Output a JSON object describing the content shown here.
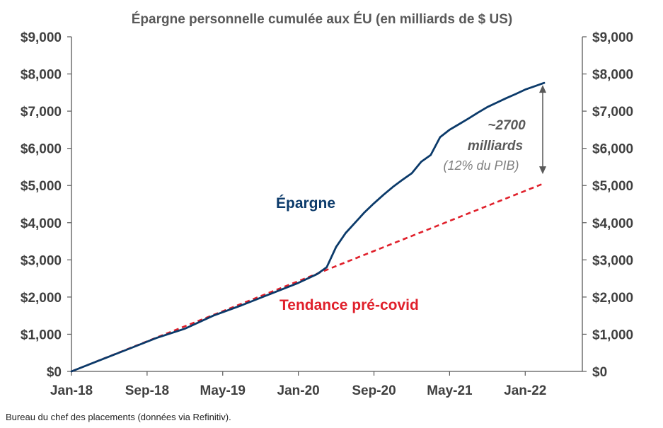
{
  "chart_data": {
    "type": "line",
    "title": "Épargne personnelle cumulée aux ÉU (en milliards de $ US)",
    "x_start": "2018-01",
    "x_ticks": [
      "Jan-18",
      "Sep-18",
      "May-19",
      "Jan-20",
      "Sep-20",
      "May-21",
      "Jan-22"
    ],
    "y_ticks": [
      "$0",
      "$1,000",
      "$2,000",
      "$3,000",
      "$4,000",
      "$5,000",
      "$6,000",
      "$7,000",
      "$8,000",
      "$9,000"
    ],
    "ylim": [
      0,
      9000
    ],
    "grid": false,
    "series": [
      {
        "name": "Épargne",
        "color": "#0b3a6a",
        "style": "solid",
        "points": [
          [
            "2018-01",
            0
          ],
          [
            "2018-04",
            300
          ],
          [
            "2018-07",
            600
          ],
          [
            "2018-10",
            900
          ],
          [
            "2019-01",
            1150
          ],
          [
            "2019-04",
            1500
          ],
          [
            "2019-07",
            1780
          ],
          [
            "2019-10",
            2080
          ],
          [
            "2020-01",
            2380
          ],
          [
            "2020-03",
            2620
          ],
          [
            "2020-04",
            2800
          ],
          [
            "2020-05",
            3350
          ],
          [
            "2020-06",
            3720
          ],
          [
            "2020-07",
            4000
          ],
          [
            "2020-08",
            4280
          ],
          [
            "2020-09",
            4520
          ],
          [
            "2020-10",
            4750
          ],
          [
            "2020-11",
            4960
          ],
          [
            "2020-12",
            5150
          ],
          [
            "2021-01",
            5330
          ],
          [
            "2021-02",
            5640
          ],
          [
            "2021-03",
            5820
          ],
          [
            "2021-04",
            6300
          ],
          [
            "2021-05",
            6500
          ],
          [
            "2021-06",
            6650
          ],
          [
            "2021-07",
            6800
          ],
          [
            "2021-08",
            6960
          ],
          [
            "2021-09",
            7110
          ],
          [
            "2021-10",
            7230
          ],
          [
            "2021-11",
            7350
          ],
          [
            "2021-12",
            7460
          ],
          [
            "2022-01",
            7580
          ],
          [
            "2022-02",
            7670
          ],
          [
            "2022-03",
            7760
          ]
        ]
      },
      {
        "name": "Tendance pré-covid",
        "color": "#e0202b",
        "style": "dashed",
        "points": [
          [
            "2018-01",
            0
          ],
          [
            "2022-03",
            5060
          ]
        ]
      }
    ],
    "annotation": {
      "line1": "~2700",
      "line2": "milliards",
      "line3": "(12% du PIB)",
      "x": "2022-03",
      "y_top": 7760,
      "y_bottom": 5060
    }
  },
  "source": "Bureau du chef des placements (données via Refinitiv)."
}
